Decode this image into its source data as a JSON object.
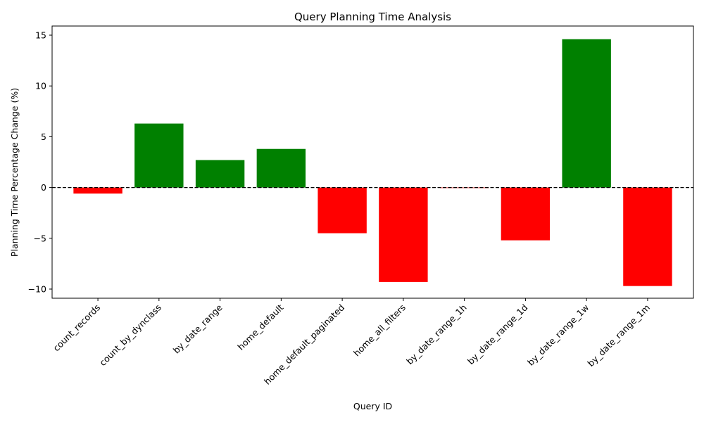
{
  "chart_data": {
    "type": "bar",
    "title": "Query Planning Time Analysis",
    "xlabel": "Query ID",
    "ylabel": "Planning Time Percentage Change (%)",
    "categories": [
      "count_records",
      "count_by_dynclass",
      "by_date_range",
      "home_default",
      "home_default_paginated",
      "home_all_filters",
      "by_date_range_1h",
      "by_date_range_1d",
      "by_date_range_1w",
      "by_date_range_1m"
    ],
    "values": [
      -0.6,
      6.3,
      2.7,
      3.8,
      -4.5,
      -9.3,
      -0.05,
      -5.2,
      14.6,
      -9.7
    ],
    "ylim": [
      -10.9,
      15.9
    ],
    "yticks": [
      -10,
      -5,
      0,
      5,
      10,
      15
    ],
    "reference_line": 0,
    "grid": false,
    "legend": "none",
    "colors": {
      "positive": "#008000",
      "negative": "#ff0000",
      "reference": "#000000"
    }
  }
}
